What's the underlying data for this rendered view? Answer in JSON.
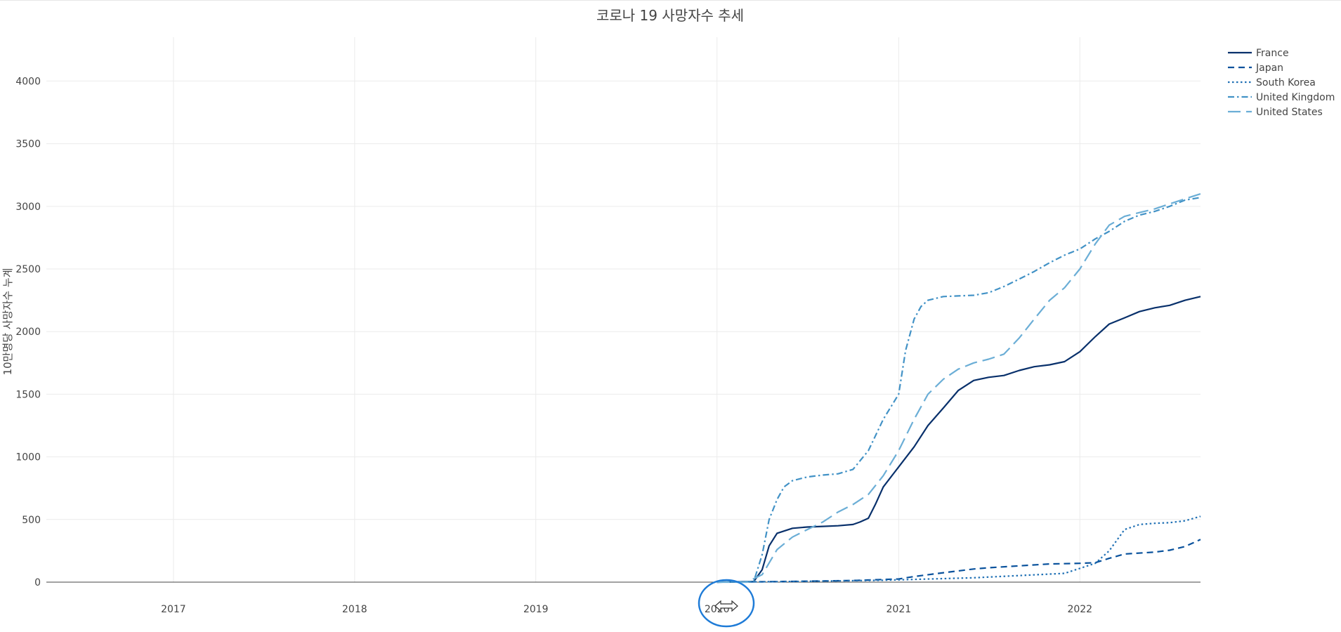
{
  "chart_data": {
    "type": "line",
    "title": "코로나 19 사망자수 추세",
    "xlabel": "",
    "ylabel": "10만명당 사망자수 누계",
    "xlim": [
      "2016-04-20",
      "2022-09-01"
    ],
    "ylim": [
      0,
      4350
    ],
    "x_ticks": [
      "2017",
      "2018",
      "2019",
      "2020",
      "2021",
      "2022"
    ],
    "y_ticks": [
      0,
      500,
      1000,
      1500,
      2000,
      2500,
      3000,
      3500,
      4000
    ],
    "grid": true,
    "legend_position": "top-right",
    "colors": {
      "France": "#08306b",
      "Japan": "#08519c",
      "South Korea": "#2171b5",
      "United Kingdom": "#4292c6",
      "United States": "#6baed6"
    },
    "series": [
      {
        "name": "France",
        "dash": "solid",
        "x": [
          "2020-01-01",
          "2020-03-15",
          "2020-04-01",
          "2020-04-15",
          "2020-05-01",
          "2020-06-01",
          "2020-07-01",
          "2020-08-01",
          "2020-09-01",
          "2020-10-01",
          "2020-10-15",
          "2020-11-01",
          "2020-11-15",
          "2020-12-01",
          "2021-01-01",
          "2021-02-01",
          "2021-03-01",
          "2021-04-01",
          "2021-05-01",
          "2021-06-01",
          "2021-07-01",
          "2021-08-01",
          "2021-09-01",
          "2021-10-01",
          "2021-11-01",
          "2021-12-01",
          "2022-01-01",
          "2022-02-01",
          "2022-03-01",
          "2022-04-01",
          "2022-05-01",
          "2022-06-01",
          "2022-07-01",
          "2022-08-01",
          "2022-09-01"
        ],
        "y": [
          0,
          5,
          100,
          290,
          390,
          430,
          440,
          445,
          450,
          460,
          480,
          510,
          620,
          760,
          920,
          1080,
          1250,
          1390,
          1530,
          1610,
          1635,
          1650,
          1690,
          1720,
          1735,
          1760,
          1840,
          1960,
          2060,
          2110,
          2160,
          2190,
          2210,
          2250,
          2280
        ]
      },
      {
        "name": "Japan",
        "dash": "dash",
        "x": [
          "2020-01-01",
          "2020-04-01",
          "2020-07-01",
          "2020-10-01",
          "2021-01-01",
          "2021-02-01",
          "2021-04-01",
          "2021-06-01",
          "2021-07-01",
          "2021-09-01",
          "2021-11-01",
          "2022-01-01",
          "2022-02-01",
          "2022-03-01",
          "2022-04-01",
          "2022-06-01",
          "2022-07-01",
          "2022-08-01",
          "2022-09-01"
        ],
        "y": [
          0,
          3,
          8,
          13,
          25,
          45,
          75,
          105,
          115,
          130,
          145,
          150,
          155,
          190,
          225,
          240,
          255,
          285,
          340
        ]
      },
      {
        "name": "South Korea",
        "dash": "dot",
        "x": [
          "2020-01-01",
          "2020-06-01",
          "2020-12-01",
          "2021-06-01",
          "2021-12-01",
          "2022-01-01",
          "2022-02-01",
          "2022-03-01",
          "2022-04-01",
          "2022-05-01",
          "2022-06-01",
          "2022-07-01",
          "2022-08-01",
          "2022-09-01"
        ],
        "y": [
          0,
          5,
          15,
          35,
          70,
          110,
          150,
          250,
          420,
          460,
          470,
          475,
          490,
          525
        ]
      },
      {
        "name": "United Kingdom",
        "dash": "dashdot",
        "x": [
          "2020-01-01",
          "2020-03-15",
          "2020-04-01",
          "2020-04-15",
          "2020-05-01",
          "2020-05-15",
          "2020-06-01",
          "2020-07-01",
          "2020-08-01",
          "2020-09-01",
          "2020-10-01",
          "2020-11-01",
          "2020-12-01",
          "2021-01-01",
          "2021-01-15",
          "2021-02-01",
          "2021-02-15",
          "2021-03-01",
          "2021-04-01",
          "2021-05-01",
          "2021-06-01",
          "2021-07-01",
          "2021-08-01",
          "2021-09-01",
          "2021-10-01",
          "2021-11-01",
          "2021-12-01",
          "2022-01-01",
          "2022-02-01",
          "2022-03-01",
          "2022-04-01",
          "2022-05-01",
          "2022-06-01",
          "2022-07-01",
          "2022-08-01",
          "2022-09-01"
        ],
        "y": [
          0,
          5,
          220,
          500,
          660,
          760,
          810,
          840,
          855,
          865,
          900,
          1050,
          1300,
          1500,
          1850,
          2100,
          2200,
          2250,
          2280,
          2285,
          2290,
          2310,
          2360,
          2420,
          2480,
          2550,
          2610,
          2660,
          2740,
          2800,
          2880,
          2930,
          2960,
          3000,
          3050,
          3070
        ]
      },
      {
        "name": "United States",
        "dash": "longdash",
        "x": [
          "2020-01-01",
          "2020-03-01",
          "2020-04-01",
          "2020-05-01",
          "2020-06-01",
          "2020-07-01",
          "2020-08-01",
          "2020-09-01",
          "2020-10-01",
          "2020-11-01",
          "2020-12-01",
          "2021-01-01",
          "2021-02-01",
          "2021-03-01",
          "2021-04-01",
          "2021-05-01",
          "2021-06-01",
          "2021-07-01",
          "2021-08-01",
          "2021-09-01",
          "2021-10-01",
          "2021-11-01",
          "2021-12-01",
          "2022-01-01",
          "2022-02-01",
          "2022-03-01",
          "2022-04-01",
          "2022-05-01",
          "2022-06-01",
          "2022-07-01",
          "2022-08-01",
          "2022-09-01"
        ],
        "y": [
          0,
          0,
          60,
          260,
          360,
          420,
          480,
          560,
          620,
          700,
          850,
          1050,
          1300,
          1500,
          1620,
          1700,
          1750,
          1780,
          1820,
          1950,
          2100,
          2250,
          2350,
          2500,
          2700,
          2850,
          2920,
          2950,
          2980,
          3020,
          3060,
          3100
        ]
      }
    ]
  }
}
